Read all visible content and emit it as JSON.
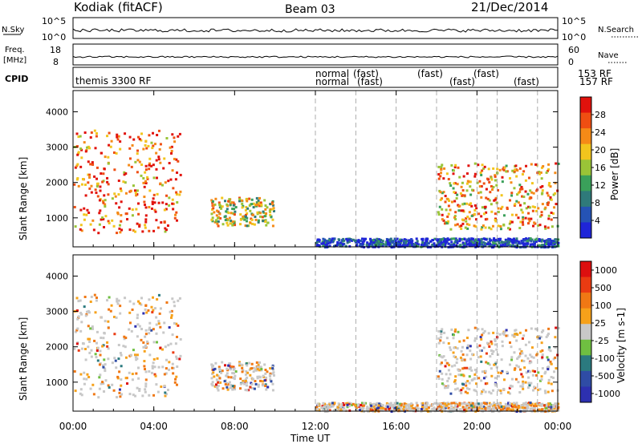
{
  "header": {
    "station": "Kodiak (fitACF)",
    "beam": "Beam 03",
    "date": "21/Dec/2014"
  },
  "strip_panels": {
    "nsky_label": "N.Sky",
    "nsearch_label": "N.Search",
    "nsky_ticks": [
      "10^5",
      "10^0"
    ],
    "nsearch_ticks": [
      "10^5",
      "10^0"
    ],
    "freq_label_top": "Freq.",
    "freq_label_bottom": "[MHz]",
    "freq_ticks": [
      "18",
      "8"
    ],
    "nave_label": "Nave",
    "nave_ticks": [
      "60",
      "0"
    ],
    "cpid_label": "CPID",
    "cpid_texts": [
      "themis 3300 RF",
      "normal",
      "normal",
      "(fast)",
      "(fast)",
      "(fast)",
      "(fast)",
      "(fast)",
      "(fast)",
      "153 RF",
      "157 RF"
    ]
  },
  "colors": {
    "power_scale": [
      "#1f25d8",
      "#2553b5",
      "#2f7a7a",
      "#3aa05a",
      "#9ac437",
      "#f2c51d",
      "#f58a17",
      "#ef4e12",
      "#e1120c"
    ],
    "velocity_scale": [
      "#2d30b0",
      "#2f4ca5",
      "#2b7a7f",
      "#6fbf41",
      "#c8c8c8",
      "#f6a11a",
      "#f07814",
      "#ea3b12",
      "#dd0f0f"
    ]
  },
  "chart_data": [
    {
      "type": "heatmap",
      "title": "Power",
      "xlabel": "",
      "ylabel": "Slant Range [km]",
      "x_ticks": [
        "00:00",
        "04:00",
        "08:00",
        "12:00",
        "16:00",
        "20:00",
        "00:00"
      ],
      "xlim_hours": [
        0,
        24
      ],
      "y_ticks": [
        1000,
        2000,
        3000,
        4000
      ],
      "ylim": [
        180,
        4600
      ],
      "colorbar": {
        "label": "Power [dB]",
        "ticks": [
          4,
          8,
          12,
          16,
          20,
          24,
          28
        ],
        "range": [
          0,
          32
        ]
      },
      "scatter_regions": [
        {
          "t_start": 0.0,
          "t_end": 5.3,
          "r_low": 600,
          "r_high": 3500,
          "level": 0.8
        },
        {
          "t_start": 6.8,
          "t_end": 9.9,
          "r_low": 800,
          "r_high": 1600,
          "level": 0.55
        },
        {
          "t_start": 12.0,
          "t_end": 24.0,
          "r_low": 200,
          "r_high": 450,
          "level": 0.1
        },
        {
          "t_start": 18.0,
          "t_end": 24.0,
          "r_low": 700,
          "r_high": 2600,
          "level": 0.7
        }
      ]
    },
    {
      "type": "heatmap",
      "title": "Velocity",
      "xlabel": "Time UT",
      "ylabel": "Slant Range [km]",
      "x_ticks": [
        "00:00",
        "04:00",
        "08:00",
        "12:00",
        "16:00",
        "20:00",
        "00:00"
      ],
      "xlim_hours": [
        0,
        24
      ],
      "y_ticks": [
        1000,
        2000,
        3000,
        4000
      ],
      "ylim": [
        180,
        4600
      ],
      "colorbar": {
        "label": "Velocity [m s-1]",
        "ticks": [
          1000,
          500,
          100,
          25,
          -25,
          -100,
          -500,
          -1000
        ]
      }
    }
  ]
}
